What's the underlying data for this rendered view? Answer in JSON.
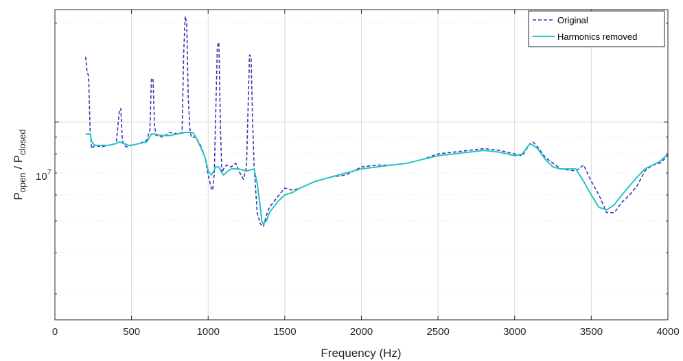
{
  "chart_data": {
    "type": "line",
    "xlabel": "Frequency (Hz)",
    "ylabel_main": "P",
    "ylabel_sub1": "open",
    "ylabel_mid": " / P",
    "ylabel_sub2": "closed",
    "y_scale": "log",
    "xlim": [
      0,
      4000
    ],
    "ylim": [
      2500000,
      22000000
    ],
    "x_ticks": [
      0,
      500,
      1000,
      1500,
      2000,
      2500,
      3000,
      3500,
      4000
    ],
    "x_tick_labels": [
      "0",
      "500",
      "1000",
      "1500",
      "2000",
      "2500",
      "3000",
      "3500",
      "4000"
    ],
    "y_tick_base": "10",
    "y_tick_exp": "7",
    "y_major_tick": 10000000,
    "y_minor_ticks": [
      3000000,
      4000000,
      5000000,
      6000000,
      7000000,
      8000000,
      9000000,
      20000000
    ],
    "grid": true,
    "legend_position": "top-right",
    "series": [
      {
        "name": "Original",
        "style": "dashed",
        "color": "#3a33b4",
        "x": [
          200,
          210,
          220,
          230,
          240,
          260,
          300,
          350,
          400,
          420,
          430,
          440,
          450,
          470,
          500,
          550,
          600,
          620,
          630,
          640,
          650,
          660,
          680,
          700,
          750,
          800,
          830,
          840,
          850,
          860,
          870,
          880,
          890,
          920,
          950,
          980,
          1000,
          1020,
          1030,
          1040,
          1060,
          1070,
          1080,
          1090,
          1100,
          1120,
          1150,
          1180,
          1200,
          1230,
          1250,
          1270,
          1280,
          1290,
          1300,
          1320,
          1340,
          1360,
          1380,
          1400,
          1450,
          1500,
          1550,
          1600,
          1700,
          1800,
          1900,
          2000,
          2100,
          2200,
          2300,
          2400,
          2500,
          2600,
          2700,
          2800,
          2900,
          3000,
          3050,
          3100,
          3120,
          3150,
          3200,
          3250,
          3300,
          3400,
          3450,
          3500,
          3550,
          3600,
          3650,
          3700,
          3750,
          3800,
          3850,
          3900,
          3950,
          4000
        ],
        "y": [
          15800000,
          14200000,
          13800000,
          9400000,
          8300000,
          8500000,
          8400000,
          8500000,
          8600000,
          10800000,
          11000000,
          8800000,
          8500000,
          8400000,
          8500000,
          8600000,
          8800000,
          9500000,
          13500000,
          13600000,
          9800000,
          9100000,
          9100000,
          9000000,
          9300000,
          9200000,
          9300000,
          16000000,
          21000000,
          20000000,
          12000000,
          9600000,
          9000000,
          9000000,
          8500000,
          7800000,
          6900000,
          6300000,
          6200000,
          7000000,
          17000000,
          17500000,
          9600000,
          7000000,
          7200000,
          7400000,
          7300000,
          7500000,
          7100000,
          6700000,
          7300000,
          16000000,
          15800000,
          10000000,
          7300000,
          5300000,
          4900000,
          4800000,
          5200000,
          5500000,
          5900000,
          6300000,
          6200000,
          6300000,
          6600000,
          6800000,
          6900000,
          7300000,
          7400000,
          7400000,
          7500000,
          7700000,
          8000000,
          8100000,
          8200000,
          8300000,
          8200000,
          8000000,
          7900000,
          8600000,
          8700000,
          8400000,
          7800000,
          7500000,
          7200000,
          7100000,
          7400000,
          6600000,
          6000000,
          5300000,
          5300000,
          5700000,
          6000000,
          6400000,
          7100000,
          7400000,
          7500000,
          7900000
        ]
      },
      {
        "name": "Harmonics removed",
        "style": "solid",
        "color": "#24c4c4",
        "x": [
          200,
          230,
          240,
          260,
          300,
          350,
          400,
          420,
          450,
          480,
          500,
          550,
          600,
          630,
          650,
          700,
          750,
          800,
          850,
          900,
          920,
          950,
          980,
          1000,
          1020,
          1030,
          1050,
          1070,
          1090,
          1100,
          1130,
          1150,
          1200,
          1250,
          1300,
          1320,
          1340,
          1350,
          1360,
          1380,
          1400,
          1450,
          1500,
          1550,
          1600,
          1700,
          1800,
          1900,
          2000,
          2100,
          2200,
          2300,
          2400,
          2500,
          2600,
          2700,
          2800,
          2900,
          3000,
          3050,
          3100,
          3120,
          3150,
          3200,
          3250,
          3300,
          3400,
          3450,
          3500,
          3550,
          3600,
          3650,
          3700,
          3750,
          3800,
          3850,
          3900,
          3950,
          4000
        ],
        "y": [
          9200000,
          9200000,
          8700000,
          8500000,
          8500000,
          8500000,
          8600000,
          8700000,
          8600000,
          8500000,
          8500000,
          8600000,
          8700000,
          9200000,
          9200000,
          9100000,
          9100000,
          9200000,
          9300000,
          9300000,
          9000000,
          8400000,
          7800000,
          7100000,
          6900000,
          7000000,
          7300000,
          7300000,
          7000000,
          6900000,
          7100000,
          7200000,
          7200000,
          7100000,
          7200000,
          6500000,
          5500000,
          5000000,
          4900000,
          5000000,
          5300000,
          5700000,
          6000000,
          6100000,
          6300000,
          6600000,
          6800000,
          7000000,
          7200000,
          7300000,
          7400000,
          7500000,
          7700000,
          7900000,
          8000000,
          8100000,
          8200000,
          8100000,
          7900000,
          8000000,
          8600000,
          8500000,
          8300000,
          7700000,
          7300000,
          7200000,
          7200000,
          6600000,
          6000000,
          5500000,
          5400000,
          5600000,
          6000000,
          6400000,
          6800000,
          7200000,
          7400000,
          7600000,
          8000000
        ]
      }
    ]
  }
}
